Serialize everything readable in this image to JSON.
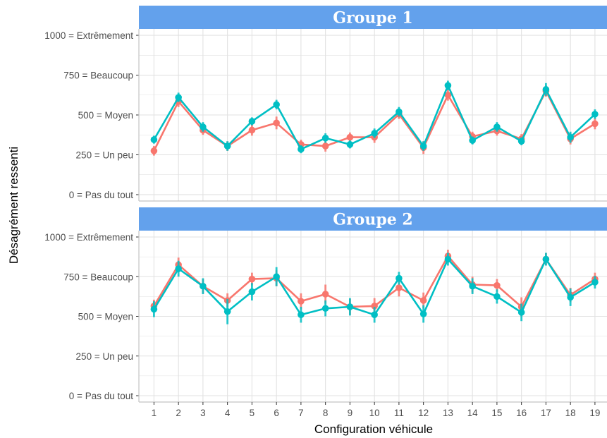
{
  "chart_data": {
    "type": "line",
    "xlabel": "Configuration véhicule",
    "ylabel": "Désagrément ressenti",
    "x": [
      1,
      2,
      3,
      4,
      5,
      6,
      7,
      8,
      9,
      10,
      11,
      12,
      13,
      14,
      15,
      16,
      17,
      18,
      19
    ],
    "ylim": [
      -40,
      1040
    ],
    "yticks": [
      0,
      250,
      500,
      750,
      1000
    ],
    "ytick_labels": [
      "0 = Pas du tout",
      "250 = Un peu",
      "500 = Moyen",
      "750 = Beaucoup",
      "1000 = Extrêmement"
    ],
    "grid": true,
    "error_bars": true,
    "panels": [
      {
        "title": "Groupe 1",
        "series": [
          {
            "color": "#F8766D",
            "values": [
              275,
              585,
              405,
              305,
              405,
              450,
              315,
              305,
              360,
              360,
              505,
              295,
              625,
              365,
              400,
              350,
              650,
              350,
              445
            ],
            "errors": [
              30,
              35,
              30,
              30,
              35,
              40,
              30,
              35,
              30,
              35,
              30,
              40,
              35,
              30,
              30,
              30,
              35,
              35,
              35
            ]
          },
          {
            "color": "#00BFC4",
            "values": [
              345,
              610,
              425,
              305,
              460,
              565,
              285,
              355,
              315,
              385,
              520,
              305,
              685,
              340,
              425,
              335,
              660,
              360,
              505
            ],
            "errors": [
              25,
              30,
              30,
              30,
              25,
              30,
              25,
              30,
              25,
              30,
              30,
              30,
              30,
              25,
              30,
              25,
              40,
              35,
              30
            ]
          }
        ]
      },
      {
        "title": "Groupe 2",
        "series": [
          {
            "color": "#F8766D",
            "values": [
              565,
              825,
              690,
              600,
              735,
              740,
              595,
              640,
              560,
              565,
              680,
              600,
              880,
              700,
              695,
              560,
              860,
              635,
              735
            ],
            "errors": [
              40,
              45,
              45,
              45,
              40,
              50,
              50,
              60,
              50,
              50,
              55,
              50,
              40,
              50,
              40,
              60,
              40,
              45,
              40
            ]
          },
          {
            "color": "#00BFC4",
            "values": [
              545,
              800,
              690,
              530,
              655,
              750,
              510,
              550,
              560,
              510,
              740,
              515,
              860,
              690,
              625,
              525,
              860,
              620,
              715
            ],
            "errors": [
              50,
              50,
              50,
              80,
              55,
              60,
              50,
              50,
              55,
              50,
              40,
              55,
              40,
              50,
              45,
              55,
              40,
              55,
              40
            ]
          }
        ]
      }
    ]
  },
  "colors": {
    "strip_fill": "#63A1EC",
    "grid_line": "#E2E2E2",
    "panel_border": "#C3C3C3"
  }
}
